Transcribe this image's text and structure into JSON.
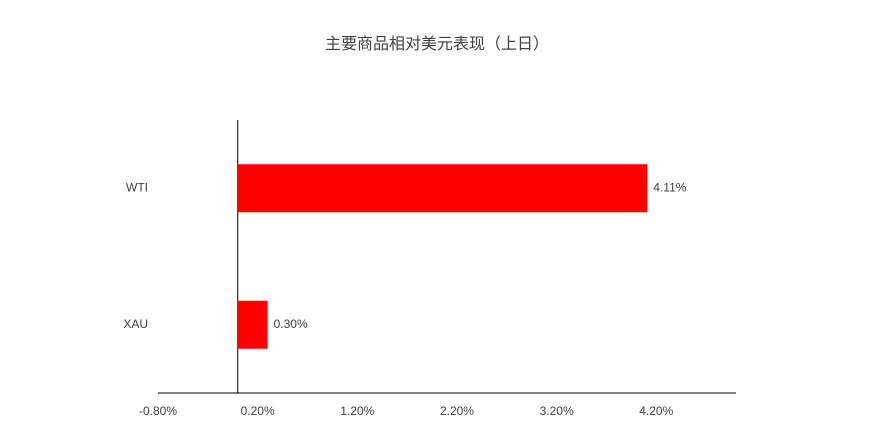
{
  "chart_data": {
    "type": "hbar",
    "title": "主要商品相对美元表现（上日）",
    "categories": [
      "WTI",
      "XAU"
    ],
    "values": [
      4.11,
      0.3
    ],
    "value_labels": [
      "4.11%",
      "0.30%"
    ],
    "color": "#ff0000",
    "xlim": [
      -0.8,
      5.0
    ],
    "xticks": [
      {
        "value": -0.8,
        "label": "-0.80%"
      },
      {
        "value": 0.2,
        "label": "0.20%"
      },
      {
        "value": 1.2,
        "label": "1.20%"
      },
      {
        "value": 2.2,
        "label": "2.20%"
      },
      {
        "value": 3.2,
        "label": "3.20%"
      },
      {
        "value": 4.2,
        "label": "4.20%"
      }
    ]
  }
}
